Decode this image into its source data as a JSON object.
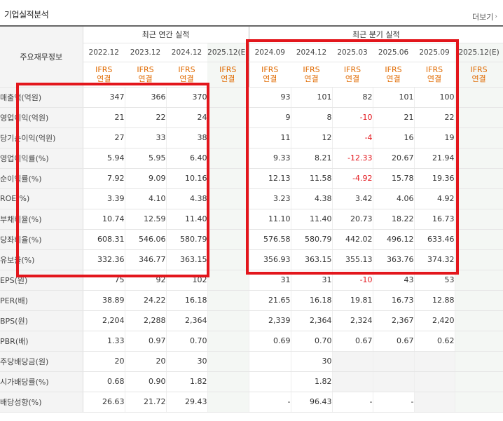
{
  "header": {
    "title": "기업실적분석",
    "more_label": "더보기"
  },
  "groups": {
    "annual": "최근 연간 실적",
    "quarterly": "최근 분기 실적"
  },
  "row_header_label": "주요재무정보",
  "periods": [
    "2022.12",
    "2023.12",
    "2024.12",
    "2025.12(E)",
    "2024.09",
    "2024.12",
    "2025.03",
    "2025.06",
    "2025.09",
    "2025.12(E)"
  ],
  "basis": [
    {
      "line1": "IFRS",
      "line2": "연결"
    },
    {
      "line1": "IFRS",
      "line2": "연결"
    },
    {
      "line1": "IFRS",
      "line2": "연결"
    },
    {
      "line1": "IFRS",
      "line2": "연결"
    },
    {
      "line1": "IFRS",
      "line2": "연결"
    },
    {
      "line1": "IFRS",
      "line2": "연결"
    },
    {
      "line1": "IFRS",
      "line2": "연결"
    },
    {
      "line1": "IFRS",
      "line2": "연결"
    },
    {
      "line1": "IFRS",
      "line2": "연결"
    },
    {
      "line1": "IFRS",
      "line2": "연결"
    }
  ],
  "rows": [
    {
      "label": "매출액(억원)",
      "values": [
        "347",
        "366",
        "370",
        "",
        "93",
        "101",
        "82",
        "101",
        "100",
        ""
      ]
    },
    {
      "label": "영업이익(억원)",
      "values": [
        "21",
        "22",
        "24",
        "",
        "9",
        "8",
        "-10",
        "21",
        "22",
        ""
      ]
    },
    {
      "label": "당기순이익(억원)",
      "values": [
        "27",
        "33",
        "38",
        "",
        "11",
        "12",
        "-4",
        "16",
        "19",
        ""
      ]
    },
    {
      "label": "영업이익률(%)",
      "values": [
        "5.94",
        "5.95",
        "6.40",
        "",
        "9.33",
        "8.21",
        "-12.33",
        "20.67",
        "21.94",
        ""
      ]
    },
    {
      "label": "순이익률(%)",
      "values": [
        "7.92",
        "9.09",
        "10.16",
        "",
        "12.13",
        "11.58",
        "-4.92",
        "15.78",
        "19.36",
        ""
      ]
    },
    {
      "label": "ROE(%)",
      "values": [
        "3.39",
        "4.10",
        "4.38",
        "",
        "3.23",
        "4.38",
        "3.42",
        "4.06",
        "4.92",
        ""
      ]
    },
    {
      "label": "부채비율(%)",
      "values": [
        "10.74",
        "12.59",
        "11.40",
        "",
        "11.10",
        "11.40",
        "20.73",
        "18.22",
        "16.73",
        ""
      ]
    },
    {
      "label": "당좌비율(%)",
      "values": [
        "608.31",
        "546.06",
        "580.79",
        "",
        "576.58",
        "580.79",
        "442.02",
        "496.12",
        "633.46",
        ""
      ]
    },
    {
      "label": "유보율(%)",
      "values": [
        "332.36",
        "346.77",
        "363.15",
        "",
        "356.93",
        "363.15",
        "355.13",
        "363.76",
        "374.32",
        ""
      ]
    },
    {
      "label": "EPS(원)",
      "values": [
        "75",
        "92",
        "102",
        "",
        "31",
        "31",
        "-10",
        "43",
        "53",
        ""
      ]
    },
    {
      "label": "PER(배)",
      "values": [
        "38.89",
        "24.22",
        "16.18",
        "",
        "21.65",
        "16.18",
        "19.81",
        "16.73",
        "12.88",
        ""
      ]
    },
    {
      "label": "BPS(원)",
      "values": [
        "2,204",
        "2,288",
        "2,364",
        "",
        "2,339",
        "2,364",
        "2,324",
        "2,367",
        "2,420",
        ""
      ]
    },
    {
      "label": "PBR(배)",
      "values": [
        "1.33",
        "0.97",
        "0.70",
        "",
        "0.69",
        "0.70",
        "0.67",
        "0.67",
        "0.62",
        ""
      ]
    },
    {
      "label": "주당배당금(원)",
      "values": [
        "20",
        "20",
        "30",
        "",
        "",
        "30",
        "",
        "",
        "",
        ""
      ]
    },
    {
      "label": "시가배당률(%)",
      "values": [
        "0.68",
        "0.90",
        "1.82",
        "",
        "",
        "1.82",
        "",
        "",
        "",
        ""
      ]
    },
    {
      "label": "배당성향(%)",
      "values": [
        "26.63",
        "21.72",
        "29.43",
        "",
        "-",
        "96.43",
        "-",
        "-",
        "",
        ""
      ]
    }
  ],
  "colors": {
    "accent_orange": "#e06a00",
    "negative_red": "#e3161c",
    "highlight_box": "#e3161c"
  }
}
